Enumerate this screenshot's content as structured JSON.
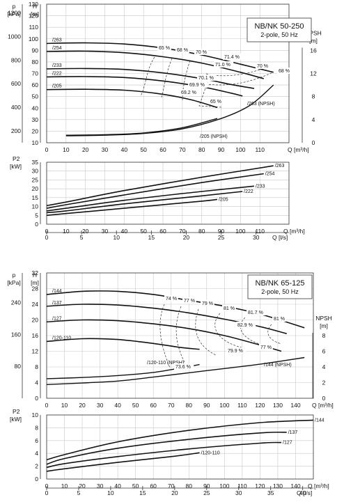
{
  "chart_data": [
    {
      "type": "line",
      "title": "NB/NK 50-250",
      "subtitle": "2-pole, 50 Hz",
      "head_panel": {
        "left_axis_label_outer": "p",
        "left_axis_unit_outer": "[kPa]",
        "left_axis_label_inner": "H",
        "left_axis_unit_inner": "[m]",
        "right_axis_label": "NPSH",
        "right_axis_unit": "[m]",
        "xlabel": "Q [m³/h]",
        "xlim": [
          0,
          125
        ],
        "ylim": [
          10,
          130
        ],
        "xticks": [
          0,
          10,
          20,
          30,
          40,
          50,
          60,
          70,
          80,
          90,
          100,
          110
        ],
        "yticks": [
          10,
          20,
          30,
          40,
          50,
          60,
          70,
          80,
          90,
          100,
          110,
          120,
          130
        ],
        "pressure_ticks": [
          200,
          400,
          600,
          800,
          1000,
          1200
        ],
        "npsh_ticks": [
          0,
          4,
          8,
          12,
          16
        ],
        "npsh_per_head_unit": 0.2,
        "series": [
          {
            "name": "/263",
            "x": [
              0,
              20,
              40,
              60,
              80,
              100,
              117
            ],
            "y": [
              96,
              96.5,
              95.5,
              92,
              86,
              78,
              71
            ]
          },
          {
            "name": "/254",
            "x": [
              0,
              20,
              40,
              60,
              80,
              100,
              112
            ],
            "y": [
              89,
              89.3,
              88,
              84.5,
              79,
              71,
              65.5
            ]
          },
          {
            "name": "/233",
            "x": [
              0,
              20,
              40,
              60,
              80,
              95,
              107
            ],
            "y": [
              74,
              74.3,
              73.5,
              70.5,
              65.5,
              60.5,
              57
            ]
          },
          {
            "name": "/222",
            "x": [
              0,
              20,
              40,
              60,
              80,
              95,
              101
            ],
            "y": [
              67,
              67.3,
              66.5,
              63.5,
              58.5,
              53,
              50.5
            ]
          },
          {
            "name": "/205",
            "x": [
              0,
              20,
              40,
              60,
              75,
              88
            ],
            "y": [
              56,
              56.3,
              55.5,
              52,
              47,
              40.5
            ]
          }
        ],
        "npsh_series": [
          {
            "name": "/263 (NPSH)",
            "x": [
              10,
              30,
              50,
              70,
              90,
              105,
              117
            ],
            "y": [
              1.2,
              1.3,
              1.6,
              2.4,
              4.2,
              6.5,
              10
            ]
          },
          {
            "name": "/205 (NPSH)",
            "x": [
              10,
              30,
              50,
              70,
              88
            ],
            "y": [
              1.3,
              1.4,
              1.7,
              2.6,
              4.2
            ]
          }
        ],
        "efficiency_labels": [
          "65 %",
          "68 %",
          "70 %",
          "71.4 %",
          "71.0 %",
          "70 %",
          "68 %",
          "70.1 %",
          "69.9 %",
          "69.2 %",
          "65 %"
        ]
      },
      "power_panel": {
        "ylabel": "P2",
        "yunit": "[kW]",
        "xlabel": "Q [m³/h]",
        "xlabel2": "Q [l/s]",
        "xlim": [
          0,
          125
        ],
        "ylim": [
          0,
          35
        ],
        "xticks": [
          0,
          10,
          20,
          30,
          40,
          50,
          60,
          70,
          80,
          90,
          100,
          110
        ],
        "yticks": [
          0,
          5,
          10,
          15,
          20,
          25,
          30,
          35
        ],
        "ls_ticks": [
          0,
          5,
          10,
          15,
          20,
          25,
          30
        ],
        "series": [
          {
            "name": "/263",
            "x": [
              0,
              10,
              40,
              80,
              117
            ],
            "y": [
              10.5,
              12.5,
              19,
              26.5,
              33
            ]
          },
          {
            "name": "/254",
            "x": [
              0,
              10,
              40,
              80,
              112
            ],
            "y": [
              9,
              11,
              16.5,
              23.5,
              28.5
            ]
          },
          {
            "name": "/233",
            "x": [
              0,
              10,
              40,
              80,
              107
            ],
            "y": [
              7.5,
              9,
              13.5,
              18.5,
              21.5
            ]
          },
          {
            "name": "/222",
            "x": [
              0,
              10,
              40,
              80,
              101
            ],
            "y": [
              6.5,
              7.5,
              11.5,
              16,
              18.5
            ]
          },
          {
            "name": "/205",
            "x": [
              0,
              10,
              40,
              80,
              88
            ],
            "y": [
              5,
              6,
              9,
              13,
              14
            ]
          }
        ]
      }
    },
    {
      "type": "line",
      "title": "NB/NK 65-125",
      "subtitle": "2-pole, 50 Hz",
      "head_panel": {
        "left_axis_label_outer": "p",
        "left_axis_unit_outer": "[kPa]",
        "left_axis_label_inner": "H",
        "left_axis_unit_inner": "[m]",
        "right_axis_label": "NPSH",
        "right_axis_unit": "[m]",
        "xlabel": "Q [m³/h]",
        "xlim": [
          0,
          150
        ],
        "ylim": [
          0,
          32
        ],
        "xticks": [
          0,
          10,
          20,
          30,
          40,
          50,
          60,
          70,
          80,
          90,
          100,
          110,
          120,
          130,
          140
        ],
        "yticks": [
          0,
          4,
          8,
          12,
          16,
          20,
          24,
          28,
          32
        ],
        "pressure_ticks": [
          80,
          160,
          240,
          320
        ],
        "npsh_ticks": [
          0,
          2,
          4,
          6,
          8
        ],
        "npsh_per_head_unit": 0.5,
        "series": [
          {
            "name": "/144",
            "x": [
              0,
              20,
              40,
              60,
              80,
              100,
              120,
              145
            ],
            "y": [
              26.5,
              27.3,
              27.3,
              26.5,
              25,
              23.5,
              21.5,
              18
            ]
          },
          {
            "name": "/137",
            "x": [
              0,
              20,
              40,
              60,
              80,
              100,
              120,
              135
            ],
            "y": [
              23.5,
              24,
              23.8,
              23,
              21.8,
              20.2,
              18.3,
              16.5
            ]
          },
          {
            "name": "/127",
            "x": [
              0,
              20,
              40,
              60,
              80,
              100,
              120,
              132
            ],
            "y": [
              19.5,
              20,
              19.8,
              19,
              17.8,
              16,
              13.6,
              12
            ]
          },
          {
            "name": "/120-110",
            "x": [
              0,
              20,
              40,
              60,
              75,
              86
            ],
            "y": [
              14.5,
              15.2,
              15,
              14,
              13,
              12.5
            ]
          }
        ],
        "npsh_series": [
          {
            "name": "/144 (NPSH)",
            "x": [
              0,
              20,
              40,
              60,
              80,
              100,
              120,
              145
            ],
            "y": [
              1.75,
              1.95,
              2.2,
              2.7,
              3.25,
              3.8,
              4.35,
              5.2
            ]
          },
          {
            "name": "/120-110 (NPSH)",
            "x": [
              0,
              20,
              40,
              60,
              75,
              86
            ],
            "y": [
              2.5,
              2.65,
              2.9,
              3.3,
              3.85,
              4.3
            ]
          }
        ],
        "efficiency_labels": [
          "74 %",
          "77 %",
          "79 %",
          "81 %",
          "81.7 %",
          "81 %",
          "82.9 %",
          "77 %",
          "79.9 %",
          "73.6 %"
        ]
      },
      "power_panel": {
        "ylabel": "P2",
        "yunit": "[kW]",
        "xlabel": "Q [m³/h]",
        "xlabel2": "Q [l/s]",
        "xlim": [
          0,
          150
        ],
        "ylim": [
          0,
          10
        ],
        "xticks": [
          0,
          10,
          20,
          30,
          40,
          50,
          60,
          70,
          80,
          90,
          100,
          110,
          120,
          130,
          140
        ],
        "yticks": [
          0,
          2,
          4,
          6,
          8,
          10
        ],
        "ls_ticks": [
          0,
          5,
          10,
          15,
          20,
          25,
          30,
          35,
          40
        ],
        "series": [
          {
            "name": "/144",
            "x": [
              0,
              10,
              40,
              80,
              120,
              150
            ],
            "y": [
              3,
              3.8,
              5.8,
              7.6,
              8.8,
              9.2
            ]
          },
          {
            "name": "/137",
            "x": [
              0,
              10,
              40,
              80,
              120,
              135
            ],
            "y": [
              2.3,
              3.2,
              4.8,
              6.2,
              7.2,
              7.3
            ]
          },
          {
            "name": "/127",
            "x": [
              0,
              10,
              40,
              80,
              120,
              132
            ],
            "y": [
              1.8,
              2.4,
              3.5,
              4.7,
              5.6,
              5.7
            ]
          },
          {
            "name": "/120-110",
            "x": [
              0,
              10,
              40,
              70,
              86
            ],
            "y": [
              1.2,
              1.6,
              2.6,
              3.5,
              4.1
            ]
          }
        ]
      }
    }
  ]
}
